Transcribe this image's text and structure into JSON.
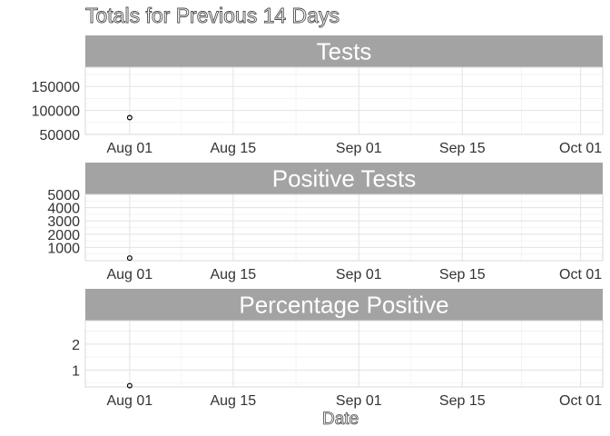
{
  "title": "Totals for Previous 14 Days",
  "xlabel": "Date",
  "chart_data": [
    {
      "type": "scatter",
      "title": "Tests",
      "x": [
        "2020-08-01"
      ],
      "y": [
        85000
      ],
      "xlim": [
        "2020-07-26",
        "2020-10-04"
      ],
      "ylim": [
        50000,
        190000
      ],
      "yticks": [
        50000,
        100000,
        150000
      ],
      "xticks": [
        "2020-08-01",
        "2020-08-15",
        "2020-09-01",
        "2020-09-15",
        "2020-10-01"
      ],
      "xtick_labels": [
        "Aug 01",
        "Aug 15",
        "Sep 01",
        "Sep 15",
        "Oct 01"
      ]
    },
    {
      "type": "scatter",
      "title": "Positive Tests",
      "x": [
        "2020-08-01"
      ],
      "y": [
        200
      ],
      "xlim": [
        "2020-07-26",
        "2020-10-04"
      ],
      "ylim": [
        0,
        5000
      ],
      "yticks": [
        1000,
        2000,
        3000,
        4000,
        5000
      ],
      "xticks": [
        "2020-08-01",
        "2020-08-15",
        "2020-09-01",
        "2020-09-15",
        "2020-10-01"
      ],
      "xtick_labels": [
        "Aug 01",
        "Aug 15",
        "Sep 01",
        "Sep 15",
        "Oct 01"
      ]
    },
    {
      "type": "scatter",
      "title": "Percentage Positive",
      "x": [
        "2020-08-01"
      ],
      "y": [
        0.4
      ],
      "xlim": [
        "2020-07-26",
        "2020-10-04"
      ],
      "ylim": [
        0.35,
        2.9
      ],
      "yticks": [
        1,
        2
      ],
      "xticks": [
        "2020-08-01",
        "2020-08-15",
        "2020-09-01",
        "2020-09-15",
        "2020-10-01"
      ],
      "xtick_labels": [
        "Aug 01",
        "Aug 15",
        "Sep 01",
        "Sep 15",
        "Oct 01"
      ]
    }
  ],
  "colors": {
    "strip": "#a3a3a3",
    "grid_major": "#e5e5e5",
    "grid_minor": "#f1f1f1",
    "panel_border": "#d9d9d9",
    "point": "#000000"
  }
}
